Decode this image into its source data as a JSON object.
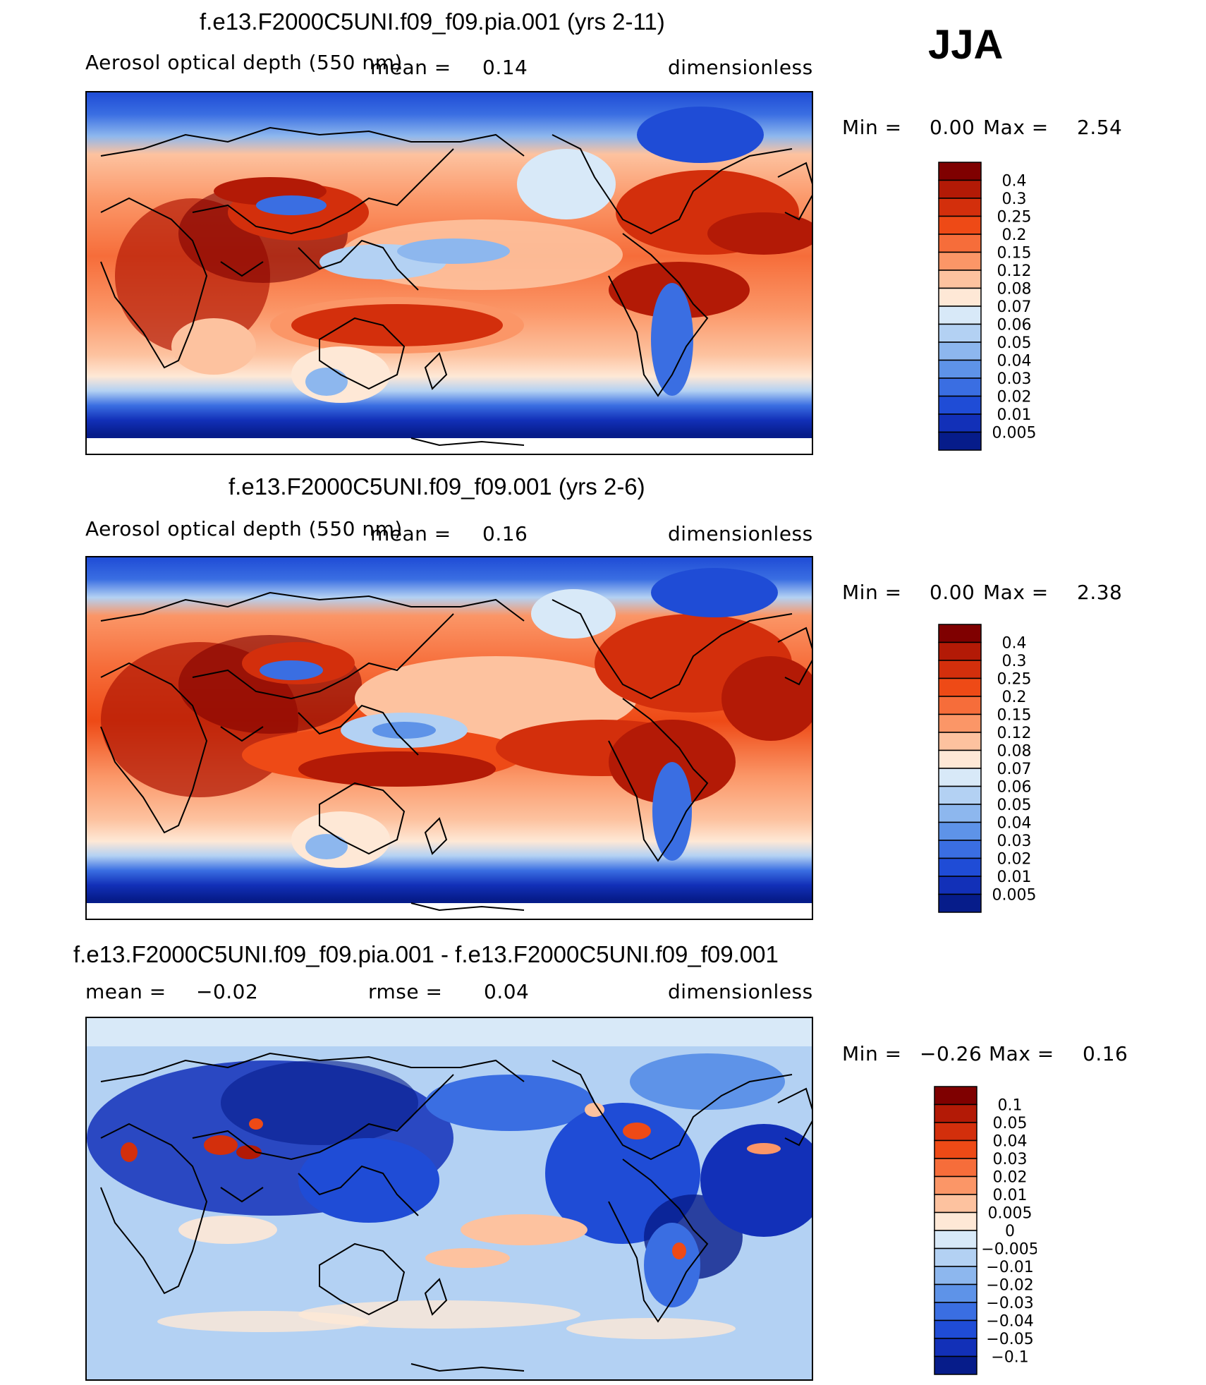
{
  "season": "JJA",
  "panels": [
    {
      "title": "f.e13.F2000C5UNI.f09_f09.pia.001 (yrs 2-11)",
      "variable": "Aerosol optical depth (550 nm)",
      "mean_label": "mean =",
      "mean_value": "0.14",
      "units": "dimensionless",
      "min_label": "Min =",
      "min_value": "0.00",
      "max_label": "Max =",
      "max_value": "2.54"
    },
    {
      "title": "f.e13.F2000C5UNI.f09_f09.001 (yrs 2-6)",
      "variable": "Aerosol optical depth (550 nm)",
      "mean_label": "mean =",
      "mean_value": "0.16",
      "units": "dimensionless",
      "min_label": "Min =",
      "min_value": "0.00",
      "max_label": "Max =",
      "max_value": "2.38"
    },
    {
      "title": "f.e13.F2000C5UNI.f09_f09.pia.001 - f.e13.F2000C5UNI.f09_f09.001",
      "mean_label": "mean =",
      "mean_value": "−0.02",
      "rmse_label": "rmse =",
      "rmse_value": "0.04",
      "units": "dimensionless",
      "min_label": "Min =",
      "min_value": "−0.26",
      "max_label": "Max =",
      "max_value": "0.16"
    }
  ],
  "chart_data": [
    {
      "type": "heatmap",
      "title": "f.e13.F2000C5UNI.f09_f09.pia.001 (yrs 2-11)",
      "variable": "Aerosol optical depth (550 nm)",
      "season": "JJA",
      "mean": 0.14,
      "min": 0.0,
      "max": 2.54,
      "units": "dimensionless",
      "colorbar_levels": [
        "0.4",
        "0.3",
        "0.25",
        "0.2",
        "0.15",
        "0.12",
        "0.08",
        "0.07",
        "0.06",
        "0.05",
        "0.04",
        "0.03",
        "0.02",
        "0.01",
        "0.005"
      ],
      "colorbar_colors": [
        "#7f0000",
        "#b31a06",
        "#d32f0c",
        "#ee4a16",
        "#f66d3a",
        "#fb9667",
        "#fdc29f",
        "#fee8d6",
        "#d8e9f8",
        "#b3d1f3",
        "#8db7ee",
        "#5e93e8",
        "#3a6ee2",
        "#1f4cd6",
        "#1230b8",
        "#061c8a"
      ]
    },
    {
      "type": "heatmap",
      "title": "f.e13.F2000C5UNI.f09_f09.001 (yrs 2-6)",
      "variable": "Aerosol optical depth (550 nm)",
      "season": "JJA",
      "mean": 0.16,
      "min": 0.0,
      "max": 2.38,
      "units": "dimensionless",
      "colorbar_levels": [
        "0.4",
        "0.3",
        "0.25",
        "0.2",
        "0.15",
        "0.12",
        "0.08",
        "0.07",
        "0.06",
        "0.05",
        "0.04",
        "0.03",
        "0.02",
        "0.01",
        "0.005"
      ],
      "colorbar_colors": [
        "#7f0000",
        "#b31a06",
        "#d32f0c",
        "#ee4a16",
        "#f66d3a",
        "#fb9667",
        "#fdc29f",
        "#fee8d6",
        "#d8e9f8",
        "#b3d1f3",
        "#8db7ee",
        "#5e93e8",
        "#3a6ee2",
        "#1f4cd6",
        "#1230b8",
        "#061c8a"
      ]
    },
    {
      "type": "heatmap",
      "title": "f.e13.F2000C5UNI.f09_f09.pia.001 - f.e13.F2000C5UNI.f09_f09.001",
      "season": "JJA",
      "mean": -0.02,
      "rmse": 0.04,
      "min": -0.26,
      "max": 0.16,
      "units": "dimensionless",
      "colorbar_levels": [
        "0.1",
        "0.05",
        "0.04",
        "0.03",
        "0.02",
        "0.01",
        "0.005",
        "0",
        "−0.005",
        "−0.01",
        "−0.02",
        "−0.03",
        "−0.04",
        "−0.05",
        "−0.1"
      ],
      "colorbar_colors": [
        "#7f0000",
        "#b31a06",
        "#d32f0c",
        "#ee4a16",
        "#f66d3a",
        "#fb9667",
        "#fdc29f",
        "#fee8d6",
        "#d8e9f8",
        "#b3d1f3",
        "#8db7ee",
        "#5e93e8",
        "#3a6ee2",
        "#1f4cd6",
        "#1230b8",
        "#061c8a"
      ]
    }
  ]
}
